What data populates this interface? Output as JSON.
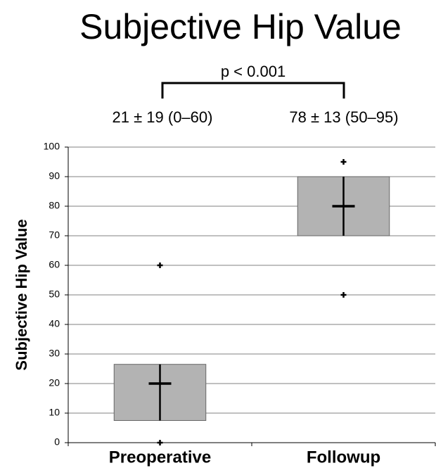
{
  "chart_data": {
    "type": "box",
    "title": "Subjective Hip Value",
    "ylabel": "Subjective Hip Value",
    "categories": [
      "Preoperative",
      "Followup"
    ],
    "q1": [
      7.5,
      70
    ],
    "median": [
      20,
      80
    ],
    "q3": [
      26.5,
      90
    ],
    "points": [
      [
        0,
        60
      ],
      [
        50,
        95
      ]
    ],
    "color": "#b3b3b3",
    "annotations": [
      "p < 0.001",
      "21 ± 19 (0–60)",
      "78 ± 13 (50–95)"
    ],
    "ylim": [
      0,
      100
    ],
    "yticks": [
      0,
      10,
      20,
      30,
      40,
      50,
      60,
      70,
      80,
      90,
      100
    ],
    "grid": true
  }
}
